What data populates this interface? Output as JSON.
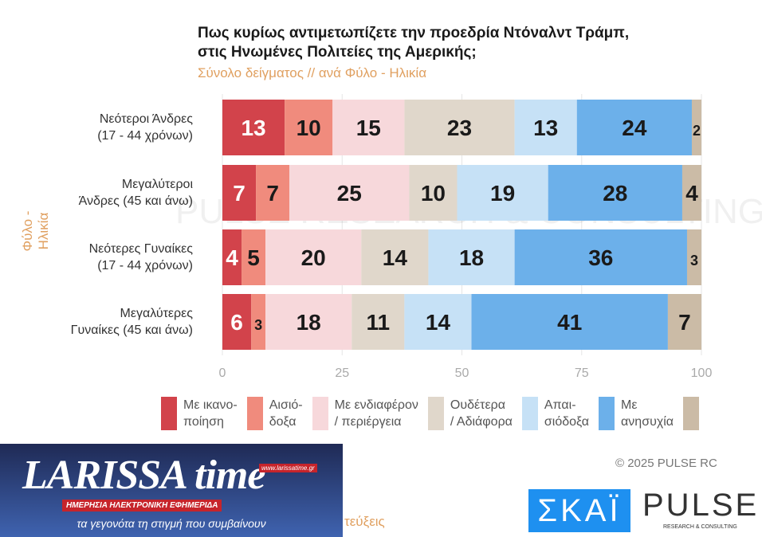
{
  "chart_data": {
    "type": "bar",
    "orientation": "horizontal",
    "stacked": true,
    "title": "Πως κυρίως αντιμετωπίζετε την προεδρία Ντόναλντ Τράμπ, στις Ηνωμένες Πολιτείες της Αμερικής;",
    "subtitle": "Σύνολο δείγματος // ανά Φύλο - Ηλικία",
    "ylabel": "Φύλο - Ηλικία",
    "xlim": [
      0,
      100
    ],
    "xticks": [
      0,
      25,
      50,
      75,
      100
    ],
    "categories": [
      "Νεότεροι Άνδρες (17 - 44 χρόνων)",
      "Μεγαλύτεροι Άνδρες (45 και άνω)",
      "Νεότερες Γυναίκες (17 - 44 χρόνων)",
      "Μεγαλύτερες Γυναίκες (45 και άνω)"
    ],
    "category_lines": [
      [
        "Νεότεροι Άνδρες",
        "(17 - 44 χρόνων)"
      ],
      [
        "Μεγαλύτεροι",
        "Άνδρες (45 και άνω)"
      ],
      [
        "Νεότερες Γυναίκες",
        "(17 - 44 χρόνων)"
      ],
      [
        "Μεγαλύτερες",
        "Γυναίκες (45 και άνω)"
      ]
    ],
    "series": [
      {
        "name": "Με ικανοποίηση",
        "legend": [
          "Με ικανο-",
          "ποίηση"
        ],
        "color": "#d2434b",
        "values": [
          13,
          7,
          4,
          6
        ]
      },
      {
        "name": "Αισιόδοξα",
        "legend": [
          "Αισιό-",
          "δοξα"
        ],
        "color": "#f08b7d",
        "values": [
          10,
          7,
          5,
          3
        ]
      },
      {
        "name": "Με ενδιαφέρον / περιέργεια",
        "legend": [
          "Με ενδιαφέρον",
          "/ περιέργεια"
        ],
        "color": "#f7d8db",
        "values": [
          15,
          25,
          20,
          18
        ]
      },
      {
        "name": "Ουδέτερα / Αδιάφορα",
        "legend": [
          "Ουδέτερα",
          "/ Αδιάφορα"
        ],
        "color": "#e0d7cb",
        "values": [
          23,
          10,
          14,
          11
        ]
      },
      {
        "name": "Απαισιόδοξα",
        "legend": [
          "Απαι-",
          "σιόδοξα"
        ],
        "color": "#c6e1f6",
        "values": [
          13,
          19,
          18,
          14
        ]
      },
      {
        "name": "Με ανησυχία",
        "legend": [
          "Με",
          "ανησυχία"
        ],
        "color": "#6cb0ea",
        "values": [
          24,
          28,
          36,
          41
        ]
      },
      {
        "name": "",
        "legend": [
          "",
          ""
        ],
        "color": "#cbbba6",
        "values": [
          2,
          4,
          3,
          7
        ]
      }
    ],
    "watermark": "PULSE RESEARCH & CONSULTING"
  },
  "footer": {
    "copyright": "© 2025 PULSE RC",
    "partial_text": "τεύξεις"
  },
  "logos": {
    "larissa": "LARISSA time",
    "larissa_url": "www.larissatime.gr",
    "larissa_tag": "ΗΜΕΡΗΣΙΑ ΗΛΕΚΤΡΟΝΙΚΗ ΕΦΗΜΕΡΙΔΑ",
    "larissa_slogan": "τα γεγονότα τη στιγμή που συμβαίνουν",
    "skai": "ΣΚΑΪ",
    "pulse": "PULSE",
    "pulse_sub": "RESEARCH & CONSULTING"
  }
}
